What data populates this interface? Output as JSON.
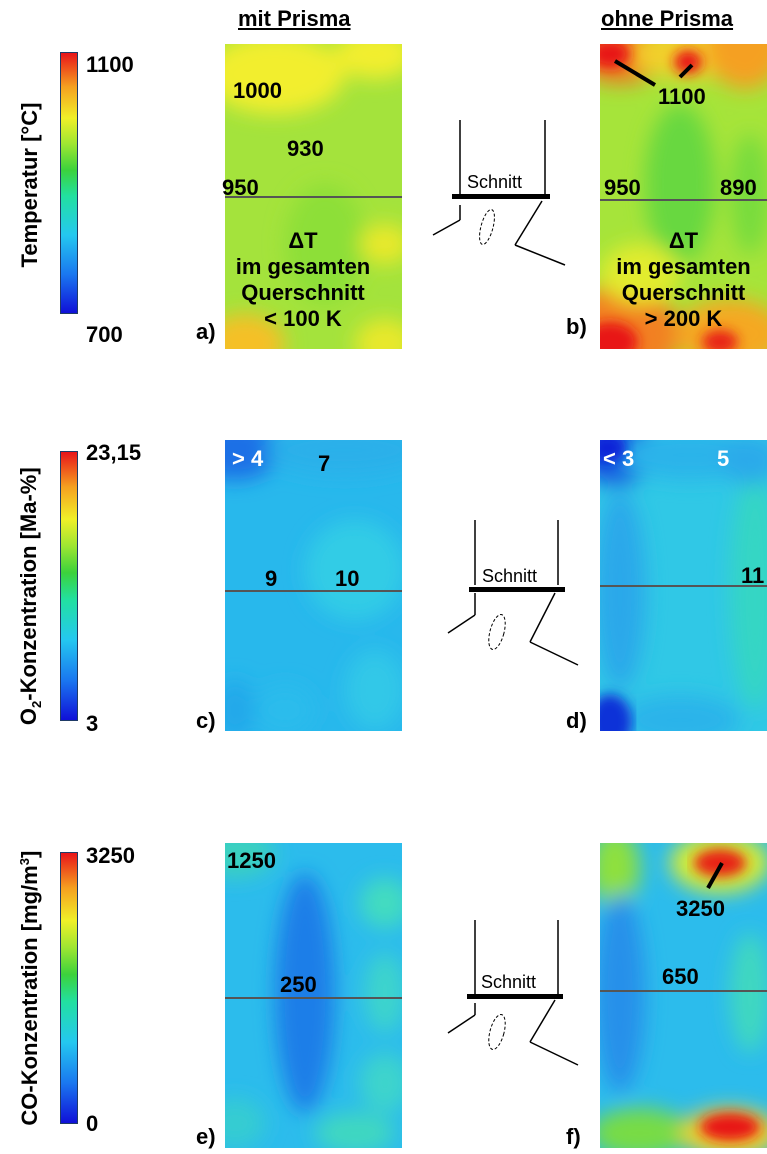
{
  "headers": {
    "left": "mit Prisma",
    "right": "ohne Prisma"
  },
  "sketch_label": "Schnitt",
  "rows": [
    {
      "axis_label": "Temperatur [°C]",
      "scale_max": "1100",
      "scale_min": "700",
      "colors": {
        "max": "#e8141a",
        "min": "#1d1de0"
      },
      "left": {
        "panel": "a)",
        "labels": [
          "1000",
          "930",
          "950"
        ],
        "note": [
          "ΔT",
          "im gesamten",
          "Querschnitt",
          "< 100 K"
        ]
      },
      "right": {
        "panel": "b)",
        "labels": [
          "1100",
          "950",
          "890"
        ],
        "note": [
          "ΔT",
          "im gesamten",
          "Querschnitt",
          "> 200 K"
        ]
      }
    },
    {
      "axis_label_main": "O",
      "axis_label_sub": "2",
      "axis_label_rest": "-Konzentration [Ma-%]",
      "scale_max": "23,15",
      "scale_min": "3",
      "left": {
        "panel": "c)",
        "labels": [
          "> 4",
          "7",
          "9",
          "10"
        ]
      },
      "right": {
        "panel": "d)",
        "labels": [
          "< 3",
          "5",
          "11"
        ]
      }
    },
    {
      "axis_label_main": "CO-Konzentration [mg/m",
      "axis_label_sup": "3",
      "axis_label_end": "]",
      "scale_max": "3250",
      "scale_min": "0",
      "left": {
        "panel": "e)",
        "labels": [
          "1250",
          "250"
        ]
      },
      "right": {
        "panel": "f)",
        "labels": [
          "3250",
          "650"
        ]
      }
    }
  ]
}
